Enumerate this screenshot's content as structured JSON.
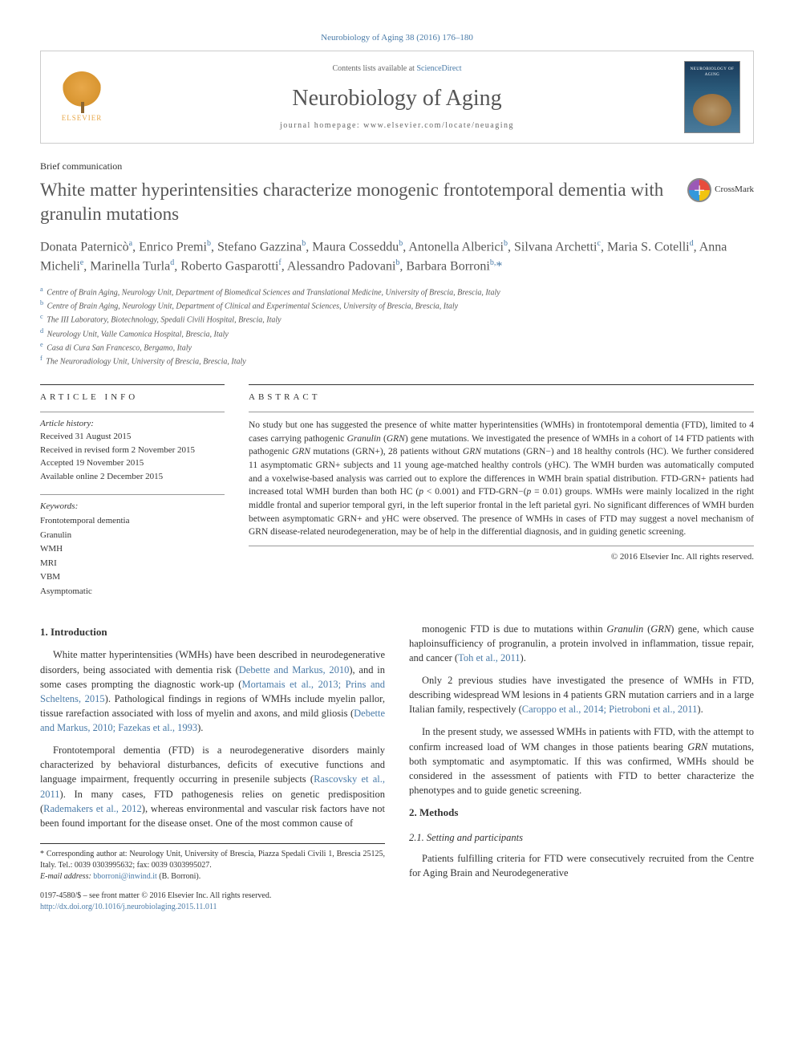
{
  "citation": "Neurobiology of Aging 38 (2016) 176–180",
  "header": {
    "elsevier_label": "ELSEVIER",
    "contents_text": "Contents lists available at ",
    "contents_link": "ScienceDirect",
    "journal_name": "Neurobiology of Aging",
    "homepage_text": "journal homepage: www.elsevier.com/locate/neuaging"
  },
  "article_type": "Brief communication",
  "title": "White matter hyperintensities characterize monogenic frontotemporal dementia with granulin mutations",
  "crossmark_label": "CrossMark",
  "authors_html": "Donata Paternicò<sup>a</sup>, Enrico Premi<sup>b</sup>, Stefano Gazzina<sup>b</sup>, Maura Cosseddu<sup>b</sup>, Antonella Alberici<sup>b</sup>, Silvana Archetti<sup>c</sup>, Maria S. Cotelli<sup>d</sup>, Anna Micheli<sup>e</sup>, Marinella Turla<sup>d</sup>, Roberto Gasparotti<sup>f</sup>, Alessandro Padovani<sup>b</sup>, Barbara Borroni<sup>b,</sup><span class=\"corr\">*</span>",
  "affiliations": [
    {
      "sup": "a",
      "text": "Centre of Brain Aging, Neurology Unit, Department of Biomedical Sciences and Translational Medicine, University of Brescia, Brescia, Italy"
    },
    {
      "sup": "b",
      "text": "Centre of Brain Aging, Neurology Unit, Department of Clinical and Experimental Sciences, University of Brescia, Brescia, Italy"
    },
    {
      "sup": "c",
      "text": "The III Laboratory, Biotechnology, Spedali Civili Hospital, Brescia, Italy"
    },
    {
      "sup": "d",
      "text": "Neurology Unit, Valle Camonica Hospital, Brescia, Italy"
    },
    {
      "sup": "e",
      "text": "Casa di Cura San Francesco, Bergamo, Italy"
    },
    {
      "sup": "f",
      "text": "The Neuroradiology Unit, University of Brescia, Brescia, Italy"
    }
  ],
  "info": {
    "heading": "ARTICLE INFO",
    "history_label": "Article history:",
    "history": [
      "Received 31 August 2015",
      "Received in revised form 2 November 2015",
      "Accepted 19 November 2015",
      "Available online 2 December 2015"
    ],
    "keywords_label": "Keywords:",
    "keywords": [
      "Frontotemporal dementia",
      "Granulin",
      "WMH",
      "MRI",
      "VBM",
      "Asymptomatic"
    ]
  },
  "abstract": {
    "heading": "ABSTRACT",
    "text_html": "No study but one has suggested the presence of white matter hyperintensities (WMHs) in frontotemporal dementia (FTD), limited to 4 cases carrying pathogenic <em>Granulin</em> (<em>GRN</em>) gene mutations. We investigated the presence of WMHs in a cohort of 14 FTD patients with pathogenic <em>GRN</em> mutations (GRN+), 28 patients without <em>GRN</em> mutations (GRN−) and 18 healthy controls (HC). We further considered 11 asymptomatic GRN+ subjects and 11 young age-matched healthy controls (yHC). The WMH burden was automatically computed and a voxelwise-based analysis was carried out to explore the differences in WMH brain spatial distribution. FTD-GRN+ patients had increased total WMH burden than both HC (<em>p</em> < 0.001) and FTD-GRN−(<em>p</em> = 0.01) groups. WMHs were mainly localized in the right middle frontal and superior temporal gyri, in the left superior frontal in the left parietal gyri. No significant differences of WMH burden between asymptomatic GRN+ and yHC were observed. The presence of WMHs in cases of FTD may suggest a novel mechanism of GRN disease-related neurodegeneration, may be of help in the differential diagnosis, and in guiding genetic screening.",
    "copyright": "© 2016 Elsevier Inc. All rights reserved."
  },
  "body": {
    "left": {
      "sec1_heading": "1. Introduction",
      "p1_html": "White matter hyperintensities (WMHs) have been described in neurodegenerative disorders, being associated with dementia risk (<span class=\"ref-link\">Debette and Markus, 2010</span>), and in some cases prompting the diagnostic work-up (<span class=\"ref-link\">Mortamais et al., 2013; Prins and Scheltens, 2015</span>). Pathological findings in regions of WMHs include myelin pallor, tissue rarefaction associated with loss of myelin and axons, and mild gliosis (<span class=\"ref-link\">Debette and Markus, 2010; Fazekas et al., 1993</span>).",
      "p2_html": "Frontotemporal dementia (FTD) is a neurodegenerative disorders mainly characterized by behavioral disturbances, deficits of executive functions and language impairment, frequently occurring in presenile subjects (<span class=\"ref-link\">Rascovsky et al., 2011</span>). In many cases, FTD pathogenesis relies on genetic predisposition (<span class=\"ref-link\">Rademakers et al., 2012</span>), whereas environmental and vascular risk factors have not been found important for the disease onset. One of the most common cause of"
    },
    "right": {
      "p1_html": "monogenic FTD is due to mutations within <em>Granulin</em> (<em>GRN</em>) gene, which cause haploinsufficiency of progranulin, a protein involved in inflammation, tissue repair, and cancer (<span class=\"ref-link\">Toh et al., 2011</span>).",
      "p2_html": "Only 2 previous studies have investigated the presence of WMHs in FTD, describing widespread WM lesions in 4 patients GRN mutation carriers and in a large Italian family, respectively (<span class=\"ref-link\">Caroppo et al., 2014; Pietroboni et al., 2011</span>).",
      "p3_html": "In the present study, we assessed WMHs in patients with FTD, with the attempt to confirm increased load of WM changes in those patients bearing <em>GRN</em> mutations, both symptomatic and asymptomatic. If this was confirmed, WMHs should be considered in the assessment of patients with FTD to better characterize the phenotypes and to guide genetic screening.",
      "sec2_heading": "2. Methods",
      "sec2_1_heading": "2.1. Setting and participants",
      "p4_html": "Patients fulfilling criteria for FTD were consecutively recruited from the Centre for Aging Brain and Neurodegenerative"
    }
  },
  "footer": {
    "corr_text": "* Corresponding author at: Neurology Unit, University of Brescia, Piazza Spedali Civili 1, Brescia 25125, Italy. Tel.: 0039 0303995632; fax: 0039 0303995027.",
    "email_label": "E-mail address: ",
    "email": "bborroni@inwind.it",
    "email_who": " (B. Borroni).",
    "front_matter": "0197-4580/$ – see front matter © 2016 Elsevier Inc. All rights reserved.",
    "doi": "http://dx.doi.org/10.1016/j.neurobiolaging.2015.11.011"
  },
  "colors": {
    "link": "#4a7ba8",
    "text": "#333333",
    "title": "#565656",
    "border": "#cccccc",
    "rule": "#333333"
  }
}
